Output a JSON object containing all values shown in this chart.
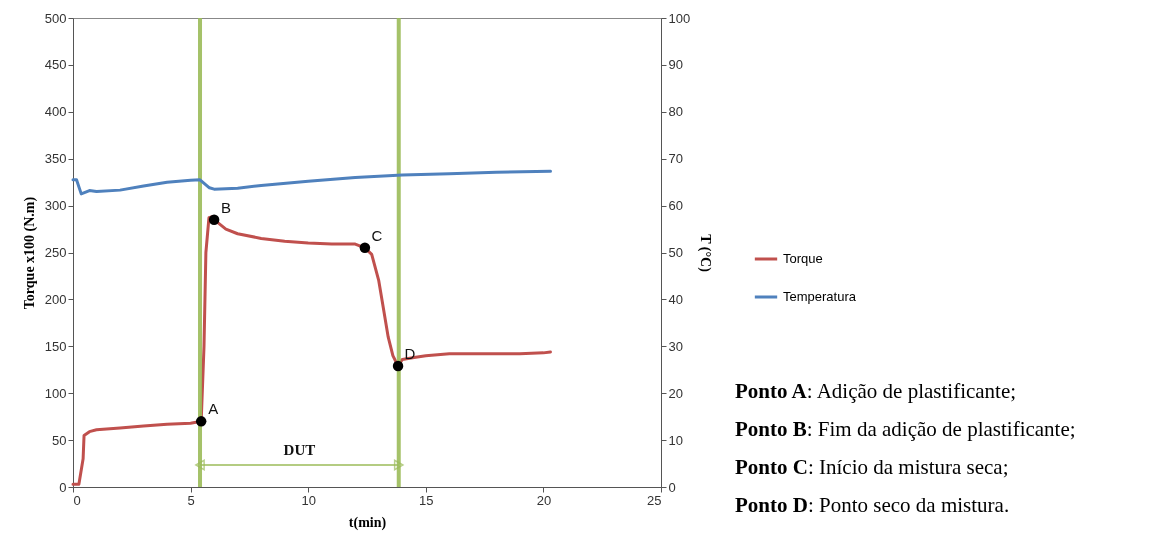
{
  "chart_data": {
    "type": "line",
    "xlabel": "t(min)",
    "ylabel": "Torque x100 (N.m)",
    "y2label": "T (°C)",
    "xlim": [
      0,
      25
    ],
    "xticks": [
      0,
      5,
      10,
      15,
      20,
      25
    ],
    "ylim": [
      0,
      500
    ],
    "yticks": [
      0,
      50,
      100,
      150,
      200,
      250,
      300,
      350,
      400,
      450,
      500
    ],
    "y2lim": [
      0,
      100
    ],
    "y2ticks": [
      0,
      10,
      20,
      30,
      40,
      50,
      60,
      70,
      80,
      90,
      100
    ],
    "grid": false,
    "legend": "right",
    "line_style": "solid",
    "marker": "none",
    "series": [
      {
        "name": "Torque",
        "color": "#c0504d",
        "x": [
          0,
          0.25,
          0.43,
          0.47,
          0.7,
          1,
          2,
          3,
          4,
          5,
          5.45,
          5.57,
          5.65,
          5.78,
          5.9,
          6,
          6.5,
          7,
          8,
          9,
          10,
          11,
          12,
          12.41,
          12.7,
          13,
          13.2,
          13.4,
          13.6,
          13.82,
          14,
          14.5,
          15,
          16,
          17,
          18,
          19,
          20,
          20.3
        ],
        "values": [
          3,
          3,
          30,
          55,
          59,
          61,
          63,
          65,
          67,
          68,
          70,
          150,
          250,
          287,
          288,
          285,
          275,
          270,
          265,
          262,
          260,
          259,
          259,
          255,
          248,
          220,
          190,
          160,
          140,
          129,
          136,
          138,
          140,
          142,
          142,
          142,
          142,
          143,
          144
        ]
      },
      {
        "name": "Temperatura",
        "color": "#4f81bd",
        "axis": "y2",
        "x": [
          0,
          0.15,
          0.35,
          0.7,
          1,
          2,
          3,
          4,
          5,
          5.4,
          5.8,
          6,
          7,
          8,
          10,
          12,
          14,
          16,
          18,
          20.3
        ],
        "values": [
          65.5,
          65.5,
          62.5,
          63.2,
          63,
          63.3,
          64.2,
          65,
          65.4,
          65.5,
          63.8,
          63.5,
          63.7,
          64.3,
          65.2,
          66,
          66.5,
          66.8,
          67.1,
          67.3
        ]
      }
    ],
    "ref_lines": [
      {
        "axis": "x",
        "value": 5.4,
        "color": "#9bbb59"
      },
      {
        "axis": "x",
        "value": 13.85,
        "color": "#9bbb59"
      }
    ],
    "annotations": [
      {
        "text": "A",
        "x": 5.45,
        "y": 70
      },
      {
        "text": "B",
        "x": 6,
        "y": 285
      },
      {
        "text": "C",
        "x": 12.41,
        "y": 255
      },
      {
        "text": "D",
        "x": 13.82,
        "y": 129
      },
      "DUT",
      "Ponto A: Adição de plastificante;",
      "Ponto B: Fim da adição de plastificante;",
      "Ponto C: Início da mistura seca;",
      "Ponto D: Ponto seco da mistura."
    ]
  }
}
